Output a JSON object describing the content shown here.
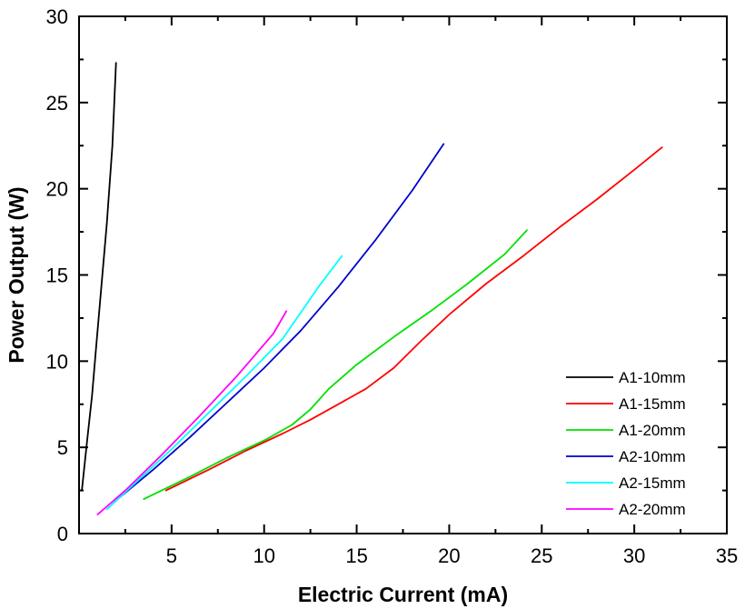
{
  "chart_data": {
    "type": "line",
    "xlabel": "Electric Current (mA)",
    "ylabel": "Power Output (W)",
    "xlim": [
      0,
      35
    ],
    "ylim": [
      0,
      30
    ],
    "xticks": [
      5,
      10,
      15,
      20,
      25,
      30,
      35
    ],
    "yticks": [
      0,
      5,
      10,
      15,
      20,
      25,
      30
    ],
    "grid": false,
    "legend_position": "bottom-right",
    "series": [
      {
        "name": "A1-10mm",
        "color": "#000000",
        "x": [
          0.15,
          0.4,
          0.7,
          0.9,
          1.1,
          1.3,
          1.5,
          1.8,
          2.0
        ],
        "y": [
          2.5,
          5,
          8,
          10.5,
          13,
          15.5,
          18,
          22.5,
          27.3
        ]
      },
      {
        "name": "A1-15mm",
        "color": "#ff0000",
        "x": [
          4.7,
          7,
          9,
          11,
          12.5,
          14,
          15.5,
          17,
          18.5,
          20,
          22,
          24,
          26,
          28,
          30,
          31.5
        ],
        "y": [
          2.5,
          3.7,
          4.8,
          5.8,
          6.6,
          7.5,
          8.4,
          9.6,
          11.2,
          12.7,
          14.5,
          16.1,
          17.8,
          19.4,
          21.1,
          22.4
        ]
      },
      {
        "name": "A1-20mm",
        "color": "#00e000",
        "x": [
          3.5,
          6,
          8,
          10,
          11.5,
          12.5,
          13.5,
          15,
          17,
          19,
          21,
          23,
          24.2
        ],
        "y": [
          2.0,
          3.3,
          4.4,
          5.4,
          6.3,
          7.2,
          8.4,
          9.8,
          11.4,
          12.9,
          14.5,
          16.2,
          17.6
        ]
      },
      {
        "name": "A2-10mm",
        "color": "#0000cc",
        "x": [
          2.2,
          4,
          6,
          8,
          10,
          12,
          14,
          16,
          18,
          19.7
        ],
        "y": [
          2.1,
          3.7,
          5.6,
          7.6,
          9.6,
          11.8,
          14.3,
          17.0,
          19.9,
          22.6
        ]
      },
      {
        "name": "A2-15mm",
        "color": "#00ffff",
        "x": [
          1.5,
          3,
          5,
          7,
          9,
          11,
          13,
          14.2
        ],
        "y": [
          1.4,
          2.9,
          4.9,
          7.0,
          9.1,
          11.3,
          14.4,
          16.1
        ]
      },
      {
        "name": "A2-20mm",
        "color": "#ff00ff",
        "x": [
          1.0,
          2.5,
          4.5,
          6.5,
          8.5,
          10.5,
          11.2
        ],
        "y": [
          1.1,
          2.5,
          4.6,
          6.8,
          9.1,
          11.6,
          12.9
        ]
      }
    ]
  }
}
